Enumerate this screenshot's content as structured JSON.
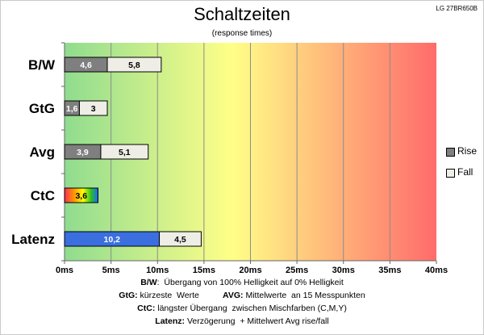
{
  "header": {
    "title": "Schaltzeiten",
    "subtitle": "(response times)",
    "model": "LG 27BR650B"
  },
  "chart_data": {
    "type": "bar",
    "orientation": "horizontal",
    "stacked": true,
    "categories": [
      "B/W",
      "GtG",
      "Avg",
      "CtC",
      "Latenz"
    ],
    "series": [
      {
        "name": "Rise",
        "values": [
          4.6,
          1.6,
          3.9,
          3.6,
          10.2
        ],
        "labels": [
          "4,6",
          "1,6",
          "3,9",
          "3,6",
          "10,2"
        ]
      },
      {
        "name": "Fall",
        "values": [
          5.8,
          3,
          5.1,
          null,
          4.5
        ],
        "labels": [
          "5,8",
          "3",
          "5,1",
          "",
          "4,5"
        ]
      }
    ],
    "xlim": [
      0,
      40
    ],
    "xticks": [
      0,
      5,
      10,
      15,
      20,
      25,
      30,
      35,
      40
    ],
    "xtick_labels": [
      "0ms",
      "5ms",
      "10ms",
      "15ms",
      "20ms",
      "25ms",
      "30ms",
      "35ms",
      "40ms"
    ],
    "grid": true,
    "legend": "right",
    "background": "gradient green-yellow-red",
    "colors": {
      "rise": "#7f7f7f",
      "fall": "#efeee6",
      "latenz_rise": "#3b6fe0",
      "grad_start": "#8fdc8f",
      "grad_mid": "#ffff88",
      "grad_end": "#ff6b6b"
    }
  },
  "legend": {
    "rise_label": "Rise",
    "fall_label": "Fall"
  },
  "footer": {
    "l1_key": "B/W",
    "l1_text": ":  Übergang von 100% Helligkeit auf 0% Helligkeit",
    "l2_key1": "GtG:",
    "l2_text1": " kürzeste  Werte          ",
    "l2_key2": "AVG:",
    "l2_text2": " Mittelwerte  an 15 Messpunkten",
    "l3_key": "CtC:",
    "l3_text": " längster Übergang  zwischen Mischfarben (C,M,Y)",
    "l4_key": "Latenz:",
    "l4_text": " Verzögerung  + Mittelwert Avg rise/fall"
  }
}
